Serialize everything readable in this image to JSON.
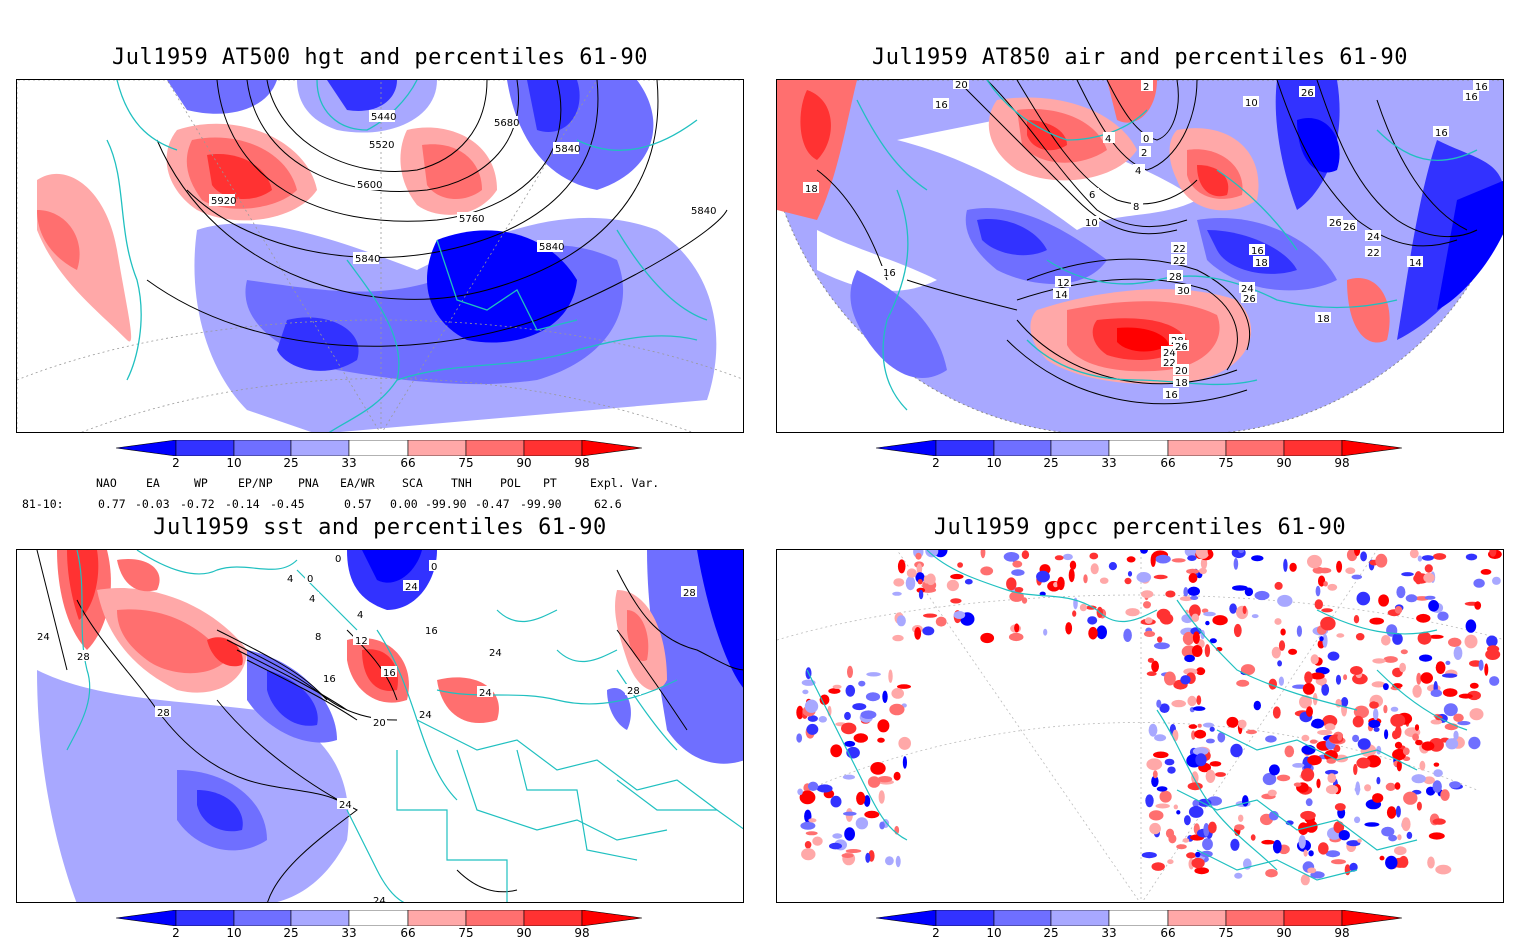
{
  "panels": [
    {
      "title": "Jul1959 AT500 hgt and percentiles 61-90",
      "contour_labels": [
        "5440",
        "5680",
        "5520",
        "5840",
        "5600",
        "5920",
        "5760",
        "5840",
        "5840",
        "5840"
      ]
    },
    {
      "title": "Jul1959 AT850 air and percentiles 61-90",
      "contour_labels": [
        "20",
        "16",
        "2",
        "26",
        "10",
        "16",
        "16",
        "4",
        "0",
        "2",
        "16",
        "4",
        "18",
        "6",
        "8",
        "10",
        "26",
        "26",
        "24",
        "22",
        "16",
        "18",
        "22",
        "22",
        "16",
        "28",
        "14",
        "12",
        "14",
        "30",
        "24",
        "26",
        "18",
        "28",
        "24",
        "26",
        "22",
        "20",
        "18",
        "16"
      ]
    },
    {
      "title": "Jul1959 sst and percentiles 61-90",
      "contour_labels": [
        "0",
        "4",
        "0",
        "0",
        "4",
        "24",
        "28",
        "24",
        "28",
        "4",
        "8",
        "12",
        "16",
        "16",
        "16",
        "24",
        "28",
        "24",
        "20",
        "24",
        "28",
        "24",
        "24"
      ]
    },
    {
      "title": "Jul1959 gpcc percentiles 61-90",
      "contour_labels": []
    }
  ],
  "colorbar": {
    "ticks": [
      "2",
      "10",
      "25",
      "33",
      "66",
      "75",
      "90",
      "98"
    ],
    "colors": [
      "#0000ff",
      "#3232ff",
      "#6f6fff",
      "#a8a8ff",
      "#ffffff",
      "#ffa8a8",
      "#ff6f6f",
      "#ff3232",
      "#ff0000"
    ]
  },
  "teleconnections": {
    "headers": [
      "NAO",
      "EA",
      "WP",
      "EP/NP",
      "PNA",
      "EA/WR",
      "SCA",
      "TNH",
      "POL",
      "PT",
      "Expl. Var."
    ],
    "row_label": "81-10:",
    "values": [
      "0.77",
      "-0.03",
      "-0.72",
      "-0.14",
      "-0.45",
      "0.57",
      "0.00",
      "-99.90",
      "-0.47",
      "-99.90",
      "62.6"
    ]
  }
}
